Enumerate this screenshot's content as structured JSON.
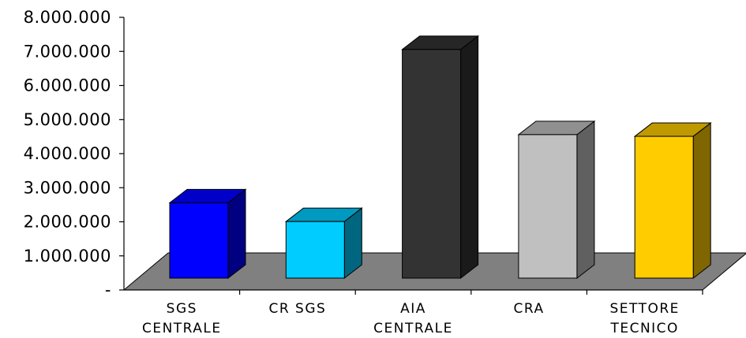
{
  "chart_data": {
    "type": "bar",
    "categories": [
      [
        "SGS",
        "CENTRALE"
      ],
      [
        "CR SGS"
      ],
      [
        "AIA",
        "CENTRALE"
      ],
      [
        "CRA"
      ],
      [
        "SETTORE",
        "TECNICO"
      ]
    ],
    "values": [
      2650000,
      2100000,
      7150000,
      4650000,
      4600000
    ],
    "ylim": [
      0,
      8000000
    ],
    "yticks": [
      0,
      1000000,
      2000000,
      3000000,
      4000000,
      5000000,
      6000000,
      7000000,
      8000000
    ],
    "ytick_labels": [
      "-",
      "1.000.000",
      "2.000.000",
      "3.000.000",
      "4.000.000",
      "5.000.000",
      "6.000.000",
      "7.000.000",
      "8.000.000"
    ],
    "colors": [
      {
        "front": "#0000ff",
        "side": "#000080",
        "top": "#0000c8"
      },
      {
        "front": "#00ccff",
        "side": "#006680",
        "top": "#0099bf"
      },
      {
        "front": "#333333",
        "side": "#1a1a1a",
        "top": "#262626"
      },
      {
        "front": "#c0c0c0",
        "side": "#606060",
        "top": "#909090"
      },
      {
        "front": "#ffcc00",
        "side": "#806600",
        "top": "#bf9900"
      }
    ],
    "floor_color": "#808080",
    "grid": false,
    "legend": "none"
  }
}
